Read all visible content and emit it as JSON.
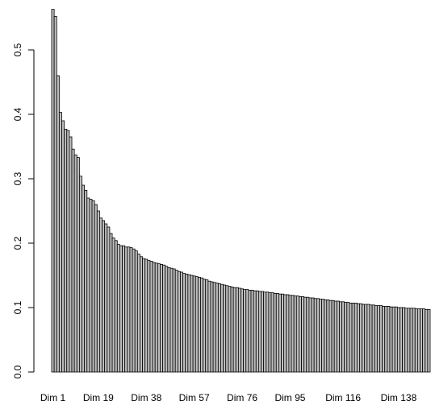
{
  "chart_data": {
    "type": "bar",
    "title": "",
    "xlabel": "",
    "ylabel": "",
    "ylim": [
      0,
      0.56
    ],
    "yticks": [
      0.0,
      0.1,
      0.2,
      0.3,
      0.4,
      0.5
    ],
    "ytick_labels": [
      "0.0",
      "0.1",
      "0.2",
      "0.3",
      "0.4",
      "0.5"
    ],
    "xtick_labels": [
      "Dim 1",
      "Dim 19",
      "Dim 38",
      "Dim 57",
      "Dim 76",
      "Dim 95",
      "Dim 116",
      "Dim 138"
    ],
    "xtick_positions": [
      1,
      19,
      38,
      57,
      76,
      95,
      116,
      138
    ],
    "n_bars": 150,
    "bar_fill": "#bebebe",
    "bar_stroke": "#000000",
    "grid": false,
    "legend": "none",
    "values": [
      0.563,
      0.552,
      0.46,
      0.403,
      0.39,
      0.377,
      0.375,
      0.365,
      0.346,
      0.337,
      0.333,
      0.304,
      0.29,
      0.282,
      0.27,
      0.268,
      0.266,
      0.26,
      0.25,
      0.239,
      0.235,
      0.23,
      0.225,
      0.215,
      0.208,
      0.204,
      0.198,
      0.196,
      0.196,
      0.194,
      0.194,
      0.193,
      0.191,
      0.188,
      0.183,
      0.179,
      0.176,
      0.175,
      0.173,
      0.172,
      0.17,
      0.169,
      0.168,
      0.167,
      0.166,
      0.164,
      0.162,
      0.161,
      0.16,
      0.158,
      0.156,
      0.155,
      0.153,
      0.152,
      0.151,
      0.15,
      0.149,
      0.148,
      0.147,
      0.146,
      0.144,
      0.143,
      0.141,
      0.14,
      0.139,
      0.138,
      0.137,
      0.136,
      0.135,
      0.134,
      0.133,
      0.132,
      0.131,
      0.131,
      0.13,
      0.129,
      0.128,
      0.128,
      0.127,
      0.127,
      0.126,
      0.126,
      0.125,
      0.125,
      0.124,
      0.124,
      0.123,
      0.123,
      0.122,
      0.122,
      0.121,
      0.121,
      0.12,
      0.12,
      0.119,
      0.119,
      0.118,
      0.118,
      0.117,
      0.117,
      0.116,
      0.116,
      0.115,
      0.115,
      0.114,
      0.114,
      0.113,
      0.113,
      0.112,
      0.112,
      0.111,
      0.111,
      0.11,
      0.11,
      0.109,
      0.109,
      0.108,
      0.108,
      0.107,
      0.107,
      0.107,
      0.106,
      0.106,
      0.105,
      0.105,
      0.105,
      0.104,
      0.104,
      0.103,
      0.103,
      0.103,
      0.102,
      0.102,
      0.102,
      0.101,
      0.101,
      0.101,
      0.1,
      0.1,
      0.1,
      0.099,
      0.099,
      0.099,
      0.099,
      0.098,
      0.098,
      0.098,
      0.098,
      0.097,
      0.097
    ]
  }
}
